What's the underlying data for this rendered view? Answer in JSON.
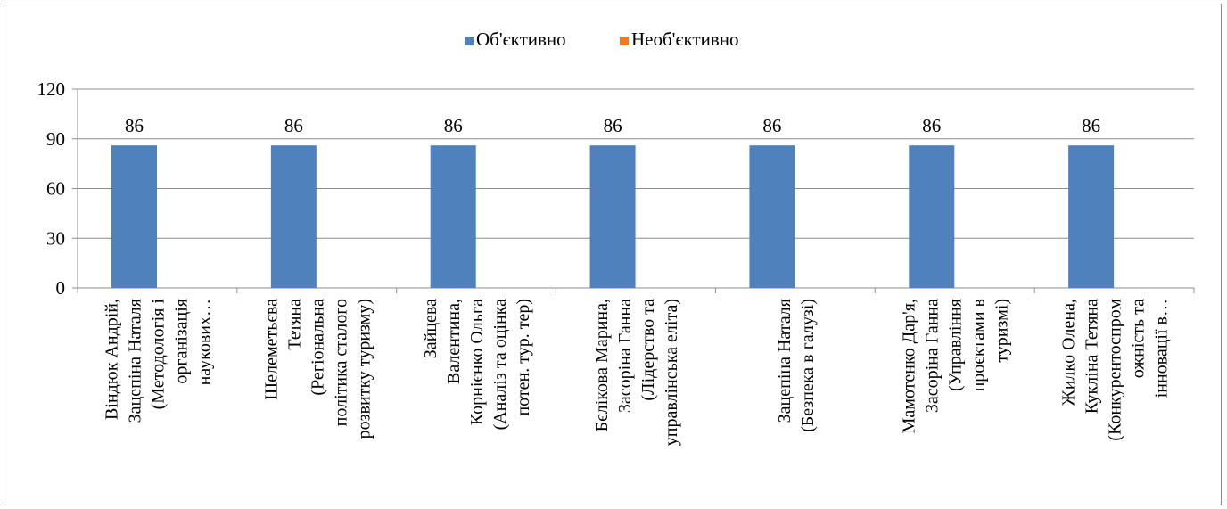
{
  "chart_data": {
    "type": "bar",
    "title": "",
    "xlabel": "",
    "ylabel": "",
    "ylim": [
      0,
      120
    ],
    "yticks": [
      0,
      30,
      60,
      90,
      120
    ],
    "grid": true,
    "legend_position": "top-center",
    "categories": [
      [
        "Віндюк Андрій,",
        "Зацепіна Наталя",
        "(Методологія і",
        "організація",
        "наукових…"
      ],
      [
        "Шелеметьєва",
        "Тетяна",
        "(Регіональна",
        "політика сталого",
        "розвитку туризму)"
      ],
      [
        "Зайцева",
        "Валентина,",
        "Корнієнко Ольга",
        "(Аналіз та оцінка",
        "потен. тур. тер)"
      ],
      [
        "Бєлікова Марина,",
        "Засоріна Ганна",
        "(Лідерство та",
        "управлінська еліта)"
      ],
      [
        "Зацепіна Наталя",
        "(Безпека в галузі)"
      ],
      [
        "Мамотенко Дар'я,",
        "Засоріна Ганна",
        "(Управління",
        "проєктами в",
        "туризмі)"
      ],
      [
        "Жилко Олена,",
        "Кукліна Тетяна",
        "(Конкурентоспром",
        "ожність та",
        "інновації в…"
      ]
    ],
    "series": [
      {
        "name": "Об'єктивно",
        "color": "#4f81bd",
        "values": [
          86,
          86,
          86,
          86,
          86,
          86,
          86
        ]
      },
      {
        "name": "Необ'єктивно",
        "color": "#f07c1f",
        "values": [
          0,
          0,
          0,
          0,
          0,
          0,
          0
        ]
      }
    ],
    "data_labels": [
      "86",
      "86",
      "86",
      "86",
      "86",
      "86",
      "86"
    ]
  }
}
